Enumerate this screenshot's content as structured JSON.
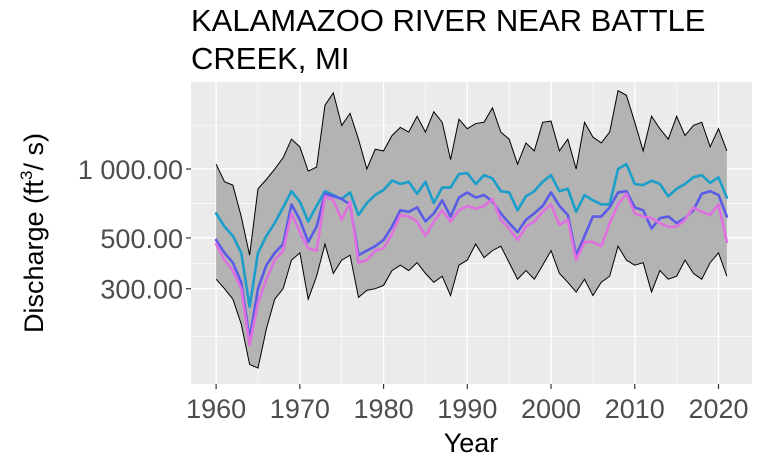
{
  "chart_data": {
    "type": "line",
    "title_lines": [
      "KALAMAZOO RIVER NEAR BATTLE",
      "CREEK, MI"
    ],
    "xlabel": "Year",
    "ylabel": "Discharge (ft",
    "ylabel_sup": "3",
    "ylabel_tail": "/ s)",
    "xlim": [
      1957,
      2024
    ],
    "ylim": [
      115,
      2400
    ],
    "y_scale": "log",
    "x_ticks": [
      1960,
      1970,
      1980,
      1990,
      2000,
      2010,
      2020
    ],
    "x_tick_labels": [
      "1960",
      "1970",
      "1980",
      "1990",
      "2000",
      "2010",
      "2020"
    ],
    "y_ticks": [
      300,
      500,
      1000
    ],
    "y_tick_labels": [
      "300.00",
      "500.00",
      "1 000.00"
    ],
    "x": [
      1960,
      1961,
      1962,
      1963,
      1964,
      1965,
      1966,
      1967,
      1968,
      1969,
      1970,
      1971,
      1972,
      1973,
      1974,
      1975,
      1976,
      1977,
      1978,
      1979,
      1980,
      1981,
      1982,
      1983,
      1984,
      1985,
      1986,
      1987,
      1988,
      1989,
      1990,
      1991,
      1992,
      1993,
      1994,
      1995,
      1996,
      1997,
      1998,
      1999,
      2000,
      2001,
      2002,
      2003,
      2004,
      2005,
      2006,
      2007,
      2008,
      2009,
      2010,
      2011,
      2012,
      2013,
      2014,
      2015,
      2016,
      2017,
      2018,
      2019,
      2020,
      2021
    ],
    "band": {
      "upper": [
        1050,
        880,
        850,
        620,
        420,
        820,
        900,
        1000,
        1120,
        1350,
        1250,
        980,
        1020,
        1900,
        2150,
        1550,
        1750,
        1350,
        1000,
        1220,
        1200,
        1400,
        1520,
        1450,
        1700,
        1450,
        1780,
        1600,
        1100,
        1650,
        1500,
        1580,
        1600,
        1850,
        1450,
        1350,
        1050,
        1300,
        1200,
        1600,
        1620,
        1200,
        1350,
        1000,
        1600,
        1380,
        1300,
        1450,
        2200,
        2100,
        1600,
        1200,
        1700,
        1500,
        1350,
        1700,
        1400,
        1550,
        1600,
        1250,
        1500,
        1200
      ],
      "lower": [
        330,
        300,
        270,
        210,
        140,
        135,
        200,
        270,
        300,
        400,
        430,
        270,
        340,
        470,
        350,
        400,
        420,
        275,
        295,
        300,
        310,
        360,
        380,
        360,
        390,
        350,
        320,
        340,
        280,
        380,
        400,
        470,
        410,
        440,
        460,
        390,
        330,
        360,
        330,
        380,
        440,
        350,
        320,
        290,
        330,
        280,
        320,
        340,
        460,
        400,
        380,
        390,
        290,
        360,
        330,
        340,
        400,
        350,
        330,
        390,
        430,
        340
      ]
    },
    "series": [
      {
        "color": "#1b9ec9",
        "values": [
          640,
          560,
          510,
          430,
          250,
          430,
          510,
          580,
          680,
          800,
          720,
          590,
          690,
          800,
          770,
          740,
          790,
          630,
          710,
          770,
          810,
          890,
          860,
          880,
          780,
          880,
          710,
          830,
          830,
          950,
          960,
          860,
          940,
          910,
          800,
          790,
          660,
          760,
          800,
          880,
          940,
          800,
          820,
          650,
          770,
          730,
          700,
          700,
          1000,
          1050,
          860,
          850,
          890,
          860,
          760,
          820,
          860,
          920,
          940,
          870,
          920,
          750
        ]
      },
      {
        "color": "#5b5be8",
        "values": [
          490,
          430,
          390,
          320,
          180,
          300,
          380,
          430,
          470,
          700,
          600,
          480,
          560,
          780,
          760,
          740,
          700,
          420,
          440,
          460,
          490,
          560,
          660,
          650,
          680,
          590,
          640,
          730,
          620,
          750,
          790,
          750,
          770,
          720,
          640,
          580,
          530,
          600,
          640,
          690,
          790,
          690,
          630,
          420,
          510,
          620,
          620,
          680,
          790,
          800,
          680,
          660,
          550,
          610,
          620,
          580,
          610,
          660,
          780,
          800,
          770,
          620
        ]
      },
      {
        "color": "#e06fe0",
        "values": [
          470,
          400,
          360,
          300,
          170,
          260,
          330,
          400,
          440,
          640,
          530,
          450,
          440,
          760,
          730,
          600,
          720,
          390,
          400,
          440,
          450,
          520,
          630,
          620,
          590,
          510,
          590,
          660,
          590,
          660,
          690,
          670,
          690,
          740,
          600,
          550,
          490,
          560,
          590,
          650,
          700,
          570,
          600,
          400,
          480,
          480,
          460,
          580,
          700,
          780,
          640,
          620,
          610,
          580,
          560,
          560,
          600,
          680,
          650,
          630,
          700,
          480
        ]
      }
    ]
  }
}
